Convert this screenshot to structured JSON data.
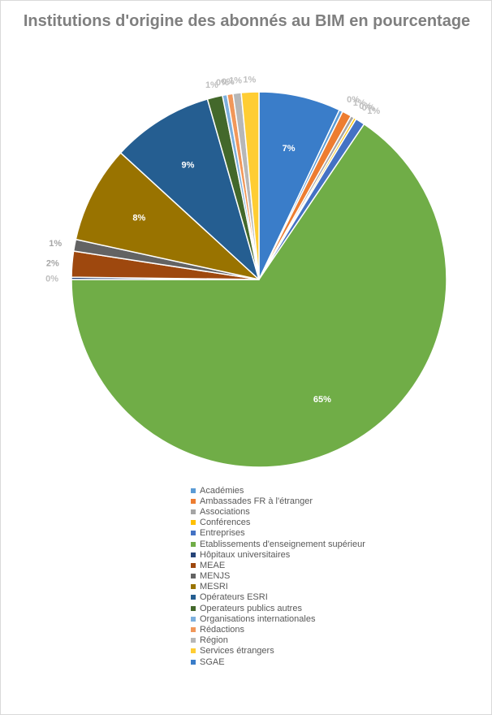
{
  "chart_data": {
    "type": "pie",
    "title": "Institutions d'origine des abonnés au BIM en pourcentage",
    "legend_position": "bottom",
    "categories": [
      "Académies",
      "Ambassades FR à l'étranger",
      "Associations",
      "Conférences",
      "Entreprises",
      "Etablissements d'enseignement supérieur",
      "Hôpitaux universitaires",
      "MEAE",
      "MENJS",
      "MESRI",
      "Opérateurs ESRI",
      "Operateurs publics autres",
      "Organisations internationales",
      "Rédactions",
      "Région",
      "Services étrangers",
      "SGAE"
    ],
    "values": [
      0.3,
      0.8,
      0.3,
      0.2,
      0.8,
      65.0,
      0.2,
      2.2,
      1.0,
      8.3,
      8.7,
      1.3,
      0.4,
      0.5,
      0.7,
      1.5,
      7.0
    ],
    "data_labels": [
      "0%",
      "1%",
      "0%",
      "0%",
      "1%",
      "65%",
      "0%",
      "2%",
      "1%",
      "8%",
      "9%",
      "1%",
      "0%",
      "0%",
      "1%",
      "1%",
      "7%"
    ],
    "colors": [
      "#5b9bd5",
      "#ed7d31",
      "#a5a5a5",
      "#ffc000",
      "#4472c4",
      "#70ad47",
      "#264478",
      "#9e480e",
      "#636363",
      "#997300",
      "#255e91",
      "#43682b",
      "#7cafdd",
      "#f1975a",
      "#b7b7b7",
      "#ffcd33",
      "#3a7dc9"
    ]
  }
}
